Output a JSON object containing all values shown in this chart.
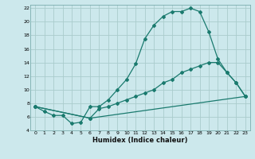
{
  "title": "",
  "xlabel": "Humidex (Indice chaleur)",
  "bg_color": "#cce8ec",
  "grid_color": "#aacccc",
  "line_color": "#1a7a6e",
  "xlim": [
    -0.5,
    23.5
  ],
  "ylim": [
    4,
    22.5
  ],
  "yticks": [
    4,
    6,
    8,
    10,
    12,
    14,
    16,
    18,
    20,
    22
  ],
  "xticks": [
    0,
    1,
    2,
    3,
    4,
    5,
    6,
    7,
    8,
    9,
    10,
    11,
    12,
    13,
    14,
    15,
    16,
    17,
    18,
    19,
    20,
    21,
    22,
    23
  ],
  "curve1_x": [
    0,
    1,
    2,
    3,
    4,
    5,
    6,
    7,
    8,
    9,
    10,
    11,
    12,
    13,
    14,
    15,
    16,
    17,
    18,
    19,
    20,
    21,
    22,
    23
  ],
  "curve1_y": [
    7.5,
    6.8,
    6.2,
    6.2,
    5.0,
    5.2,
    7.5,
    7.5,
    8.5,
    10.0,
    11.5,
    13.8,
    17.5,
    19.5,
    20.8,
    21.5,
    21.5,
    22.0,
    21.5,
    18.5,
    14.5,
    12.5,
    11.0,
    9.0
  ],
  "curve2_x": [
    0,
    6,
    7,
    8,
    9,
    10,
    11,
    12,
    13,
    14,
    15,
    16,
    17,
    18,
    19,
    20,
    21,
    22,
    23
  ],
  "curve2_y": [
    7.5,
    5.8,
    7.2,
    7.5,
    8.0,
    8.5,
    9.0,
    9.5,
    10.0,
    11.0,
    11.5,
    12.5,
    13.0,
    13.5,
    14.0,
    14.0,
    12.5,
    11.0,
    9.0
  ],
  "curve3_x": [
    0,
    6,
    23
  ],
  "curve3_y": [
    7.5,
    5.8,
    9.0
  ]
}
